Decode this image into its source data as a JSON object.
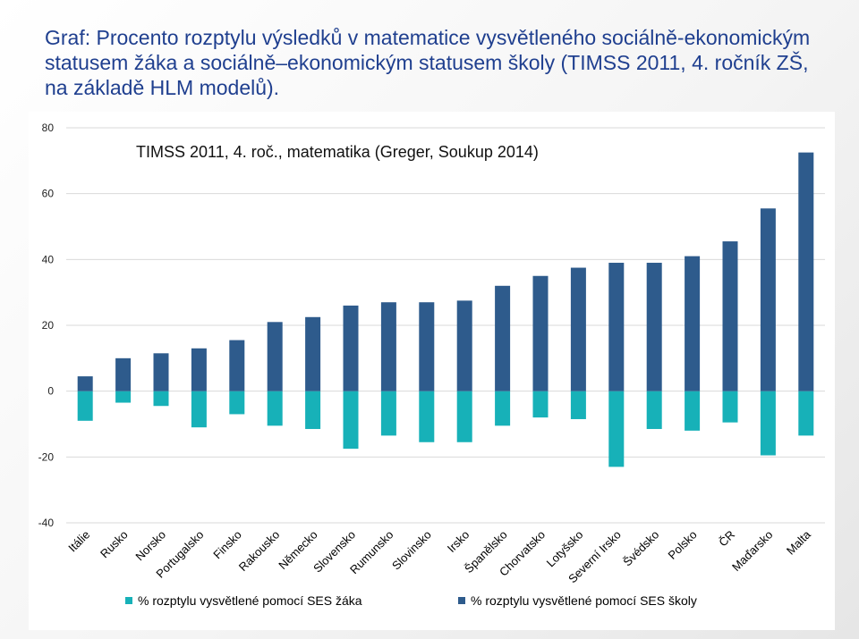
{
  "page": {
    "title": "Graf: Procento rozptylu výsledků v matematice vysvětleného sociálně-ekonomickým statusem žáka  a sociálně–ekonomickým statusem školy (TIMSS 2011, 4. ročník ZŠ, na základě HLM modelů)."
  },
  "chart_data": {
    "type": "bar",
    "title": "TIMSS 2011, 4. roč., matematika (Greger, Soukup 2014)",
    "categories": [
      "Itálie",
      "Rusko",
      "Norsko",
      "Portugalsko",
      "Finsko",
      "Rakousko",
      "Německo",
      "Slovensko",
      "Rumunsko",
      "Slovinsko",
      "Irsko",
      "Španělsko",
      "Chorvatsko",
      "Lotyšsko",
      "Severní Irsko",
      "Švédsko",
      "Polsko",
      "ČR",
      "Maďarsko",
      "Malta"
    ],
    "series": [
      {
        "name": "% rozptylu vysvětlené pomocí SES žáka",
        "color": "#17b1b8",
        "values": [
          -9,
          -3.5,
          -4.5,
          -11,
          -7,
          -10.5,
          -11.5,
          -17.5,
          -13.5,
          -15.5,
          -15.5,
          -10.5,
          -8,
          -8.5,
          -23,
          -11.5,
          -12,
          -9.5,
          -19.5,
          -13.5
        ]
      },
      {
        "name": "% rozptylu vysvětlené pomocí SES školy",
        "color": "#2e5b8c",
        "values": [
          4.5,
          10,
          11.5,
          13,
          15.5,
          21,
          22.5,
          26,
          27,
          27,
          27.5,
          32,
          35,
          37.5,
          39,
          39,
          41,
          45.5,
          55.5,
          72.5
        ]
      }
    ],
    "yticks": [
      80,
      60,
      40,
      20,
      0,
      -20,
      -40
    ],
    "ylim": [
      -40,
      80
    ],
    "grid": true,
    "legend_position": "bottom"
  }
}
